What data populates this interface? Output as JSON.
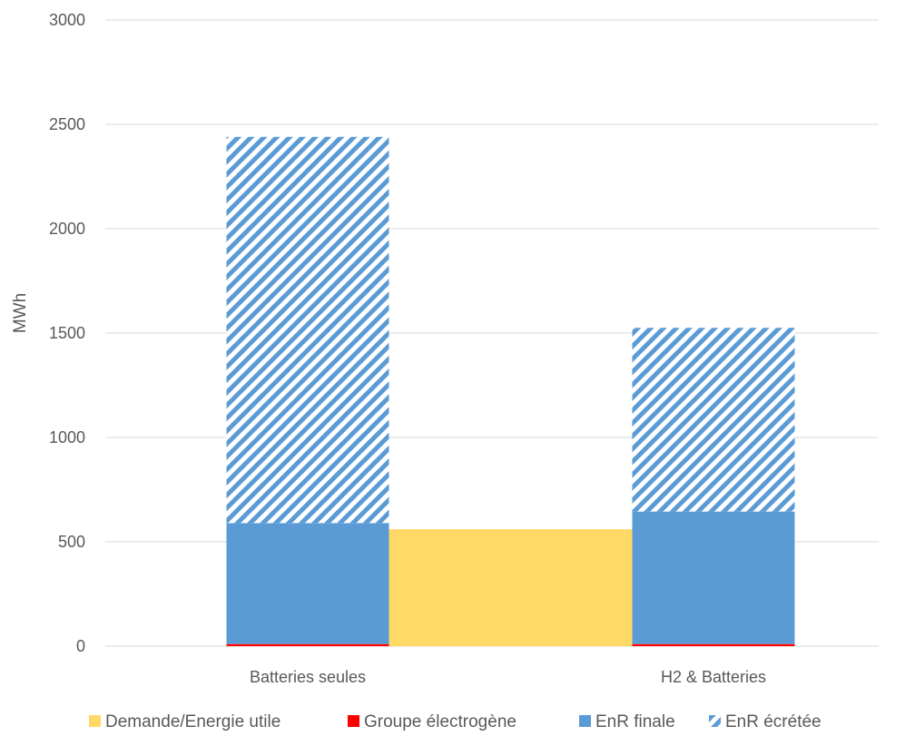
{
  "chart_data": {
    "type": "bar",
    "stacked": true,
    "title": "",
    "xlabel": "",
    "ylabel": "MWh",
    "ylim": [
      0,
      3000
    ],
    "yticks": [
      0,
      500,
      1000,
      1500,
      2000,
      2500,
      3000
    ],
    "grid": true,
    "legend_position": "bottom",
    "categories": [
      "Batteries seules",
      "H2 & Batteries"
    ],
    "series": [
      {
        "name": "Groupe électrogène",
        "color": "#ff0000",
        "values": [
          10,
          10
        ],
        "pattern": "solid"
      },
      {
        "name": "EnR finale",
        "color": "#5b9bd5",
        "values": [
          580,
          635
        ],
        "pattern": "solid"
      },
      {
        "name": "EnR écrétée",
        "color": "#5b9bd5",
        "values": [
          1850,
          880
        ],
        "pattern": "diagonal-hatch"
      }
    ],
    "reference_bar": {
      "name": "Demande/Energie utile",
      "color": "#ffd966",
      "value": 560,
      "span": "between categories"
    },
    "legend_order": [
      "Demande/Energie utile",
      "Groupe électrogène",
      "EnR finale",
      "EnR écrétée"
    ]
  }
}
